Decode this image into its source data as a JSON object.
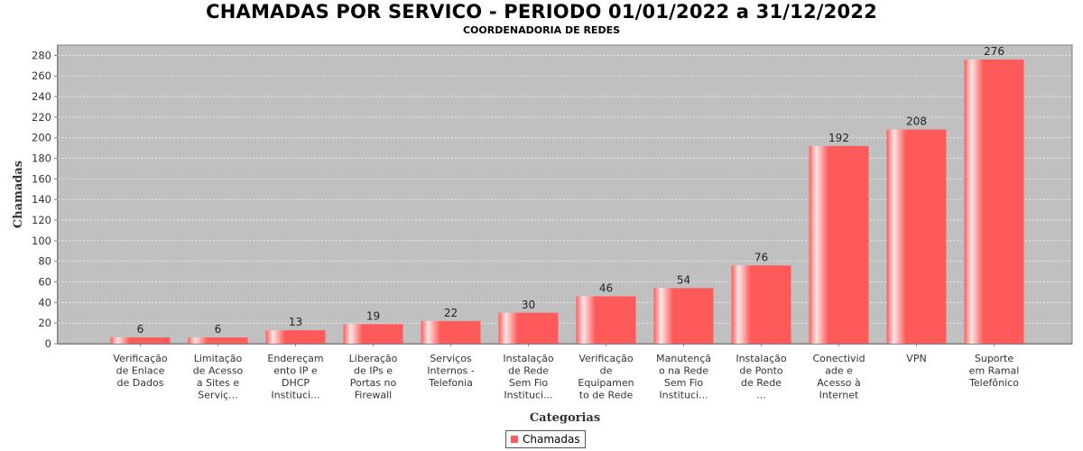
{
  "title": "CHAMADAS POR SERVICO - PERIODO 01/01/2022 a 31/12/2022",
  "subtitle": "COORDENADORIA DE REDES",
  "colors": {
    "bar": "#FF5A5A",
    "bar_highlight": "#FFE6E6",
    "plot_background": "#C0C0C0",
    "gridline": "#FFFFFF"
  },
  "chart_data": {
    "type": "bar",
    "title": "CHAMADAS POR SERVICO - PERIODO 01/01/2022 a 31/12/2022",
    "subtitle": "COORDENADORIA DE REDES",
    "xlabel": "Categorias",
    "ylabel": "Chamadas",
    "ylim": [
      0,
      290
    ],
    "yticks": [
      0,
      20,
      40,
      60,
      80,
      100,
      120,
      140,
      160,
      180,
      200,
      220,
      240,
      260,
      280
    ],
    "grid": true,
    "legend_position": "bottom",
    "categories": [
      [
        "Verificação",
        "de Enlace",
        "de Dados"
      ],
      [
        "Limitação",
        "de Acesso",
        "a Sites e",
        "Serviç..."
      ],
      [
        "Endereçam",
        "ento IP e",
        "DHCP",
        "Instituci..."
      ],
      [
        "Liberação",
        "de IPs e",
        "Portas no",
        "Firewall"
      ],
      [
        "Serviços",
        "Internos -",
        "Telefonia"
      ],
      [
        "Instalação",
        "de Rede",
        "Sem Fio",
        "Instituci..."
      ],
      [
        "Verificação",
        "de",
        "Equipamen",
        "to de Rede"
      ],
      [
        "Manutençã",
        "o na Rede",
        "Sem Fio",
        "Instituci..."
      ],
      [
        "Instalação",
        "de Ponto",
        "de Rede",
        "..."
      ],
      [
        "Conectivid",
        "ade e",
        "Acesso à",
        "Internet"
      ],
      [
        "VPN"
      ],
      [
        "Suporte",
        "em Ramal",
        "Telefônico"
      ]
    ],
    "series": [
      {
        "name": "Chamadas",
        "values": [
          6,
          6,
          13,
          19,
          22,
          30,
          46,
          54,
          76,
          192,
          208,
          276
        ]
      }
    ]
  }
}
